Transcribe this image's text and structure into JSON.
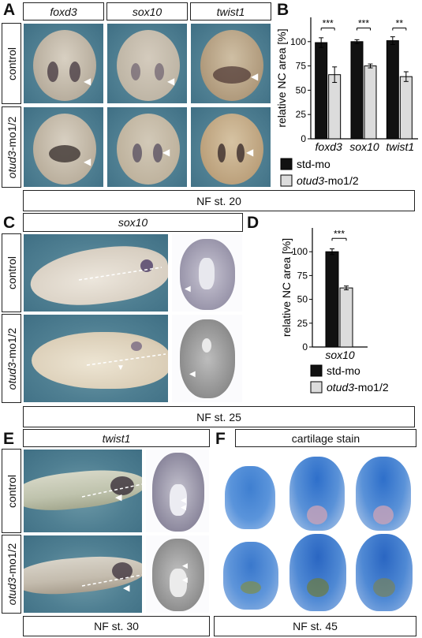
{
  "panels": {
    "A": {
      "letter": "A",
      "genes": [
        "foxd3",
        "sox10",
        "twist1"
      ],
      "rows": [
        "control",
        "mo1/2"
      ],
      "stage": "NF st. 20"
    },
    "B": {
      "letter": "B"
    },
    "C": {
      "letter": "C",
      "gene": "sox10",
      "rows": [
        "control",
        "mo1/2"
      ],
      "stage": "NF st. 25"
    },
    "D": {
      "letter": "D"
    },
    "E": {
      "letter": "E",
      "gene": "twist1",
      "rows": [
        "control",
        "mo1/2"
      ],
      "stage": "NF st. 30"
    },
    "F": {
      "letter": "F",
      "title": "cartilage stain",
      "stage": "NF st. 45"
    }
  },
  "row_prefix_italic": "otud3",
  "chart_data": [
    {
      "type": "bar",
      "panel": "B",
      "categories": [
        "foxd3",
        "sox10",
        "twist1"
      ],
      "ylabel": "relative NC area [%]",
      "ylim": [
        0,
        125
      ],
      "yticks": [
        0,
        25,
        50,
        75,
        100
      ],
      "series": [
        {
          "name": "std-mo",
          "color": "#111111",
          "values": [
            99,
            100,
            101
          ],
          "errors": [
            5,
            2,
            4
          ]
        },
        {
          "name": "otud3-mo1/2",
          "color": "#dcdcdc",
          "values": [
            66,
            75,
            64
          ],
          "errors": [
            8,
            2,
            5
          ]
        }
      ],
      "significance": [
        "***",
        "***",
        "**"
      ],
      "legend": [
        {
          "text": "std-mo",
          "italic": ""
        },
        {
          "text": "-mo1/2",
          "italic": "otud3"
        }
      ]
    },
    {
      "type": "bar",
      "panel": "D",
      "categories": [
        "sox10"
      ],
      "ylabel": "relative NC area [%]",
      "ylim": [
        0,
        125
      ],
      "yticks": [
        0,
        25,
        50,
        75,
        100
      ],
      "series": [
        {
          "name": "std-mo",
          "color": "#111111",
          "values": [
            100
          ],
          "errors": [
            3
          ]
        },
        {
          "name": "otud3-mo1/2",
          "color": "#dcdcdc",
          "values": [
            62
          ],
          "errors": [
            2
          ]
        }
      ],
      "significance": [
        "***"
      ],
      "legend": [
        {
          "text": "std-mo",
          "italic": ""
        },
        {
          "text": "-mo1/2",
          "italic": "otud3"
        }
      ]
    }
  ]
}
